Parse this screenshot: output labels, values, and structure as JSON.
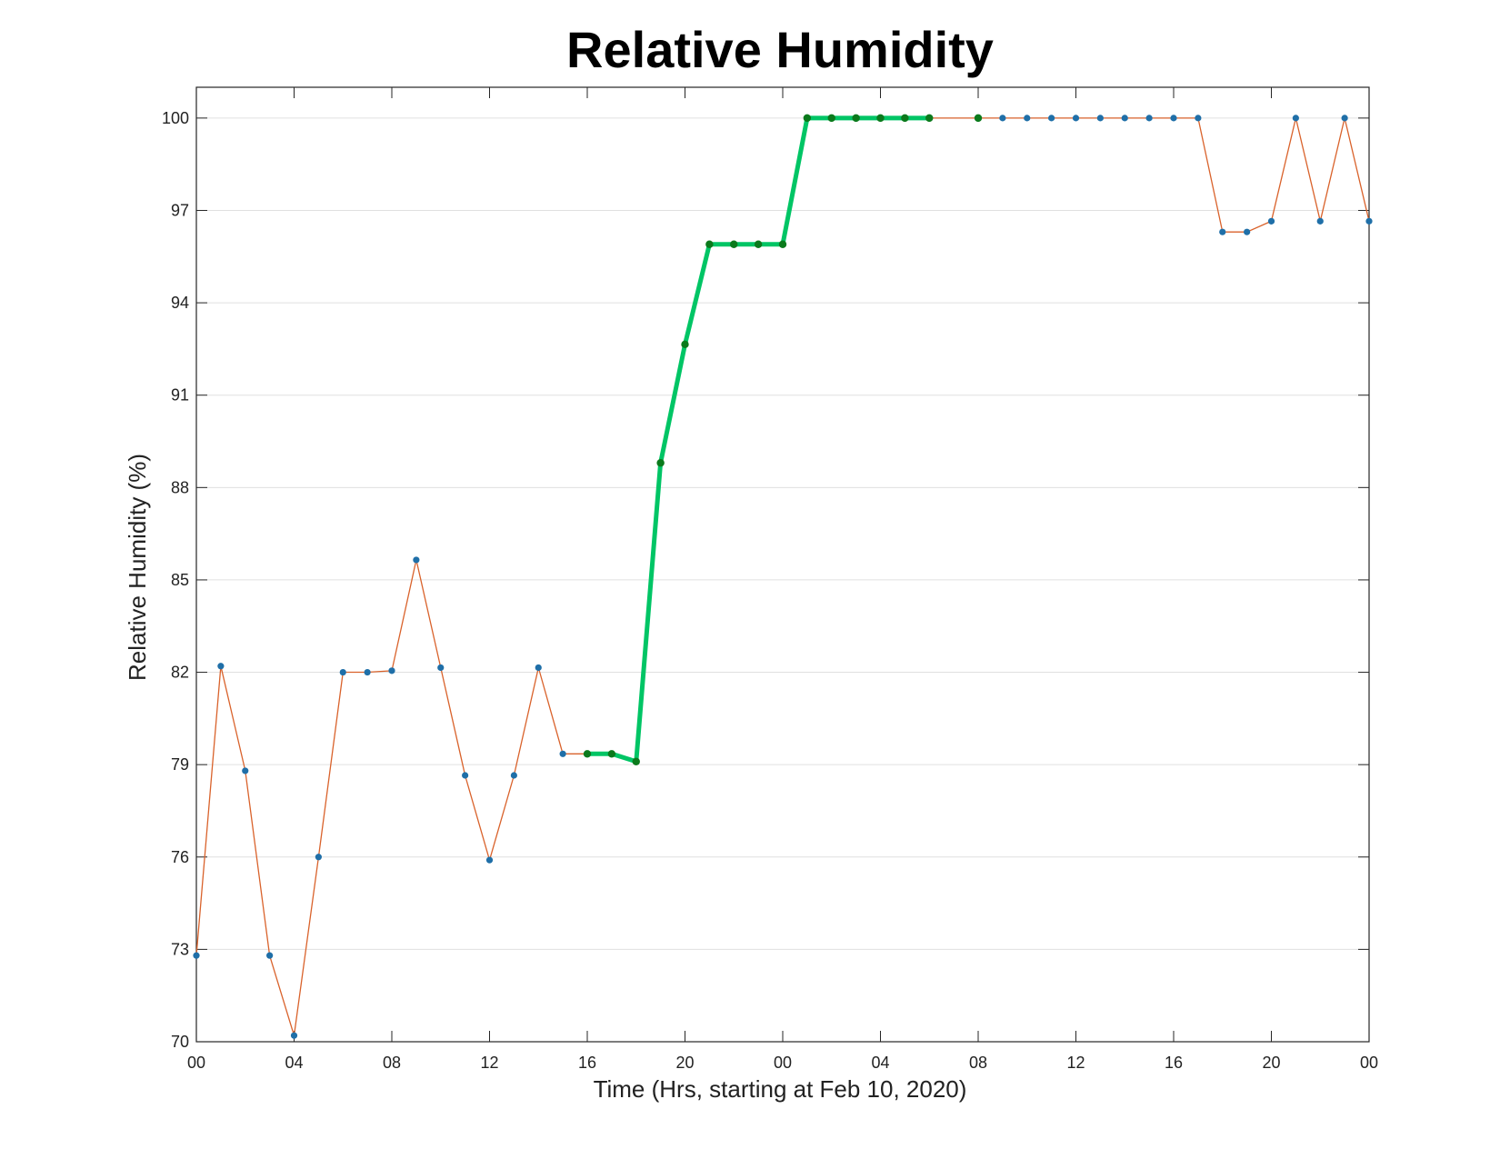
{
  "chart_data": {
    "type": "line",
    "title": "Relative Humidity",
    "xlabel": "Time (Hrs, starting at Feb 10, 2020)",
    "ylabel": "Relative Humidity (%)",
    "x_unit": "hours",
    "xlim": [
      0,
      48
    ],
    "ylim": [
      70,
      101
    ],
    "yticks": [
      70,
      73,
      76,
      79,
      82,
      85,
      88,
      91,
      94,
      97,
      100
    ],
    "xticks": [
      0,
      4,
      8,
      12,
      16,
      20,
      24,
      28,
      32,
      36,
      40,
      44,
      48
    ],
    "xtick_labels": [
      "00",
      "04",
      "08",
      "12",
      "16",
      "20",
      "00",
      "04",
      "08",
      "12",
      "16",
      "20",
      "00"
    ],
    "grid": "horizontal",
    "colors": {
      "line": "#d9622b",
      "marker": "#1f6fa8",
      "highlight_line": "#00c565",
      "highlight_marker": "#0b7a1c",
      "grid": "#e0e0e0",
      "axis": "#262626"
    },
    "series": [
      {
        "x": [
          0,
          1,
          2,
          3,
          4,
          5,
          6,
          7,
          8,
          9,
          10,
          11,
          12,
          13,
          14,
          15,
          16,
          17,
          18,
          19,
          20,
          21,
          22,
          23,
          24,
          25,
          26,
          27,
          28,
          29,
          30,
          32,
          33,
          34,
          35,
          36,
          37,
          38,
          39,
          40,
          41,
          42,
          43,
          44,
          45,
          46,
          47,
          48
        ],
        "y": [
          72.8,
          82.2,
          78.8,
          72.8,
          70.2,
          76.0,
          82.0,
          82.0,
          82.05,
          85.65,
          82.15,
          78.65,
          75.9,
          78.65,
          82.15,
          79.35,
          79.35,
          79.35,
          79.1,
          88.8,
          92.65,
          95.9,
          95.9,
          95.9,
          95.9,
          100,
          100,
          100,
          100,
          100,
          100,
          100,
          100,
          100,
          100,
          100,
          100,
          100,
          100,
          100,
          100,
          96.3,
          96.3,
          96.65,
          100,
          96.65,
          100,
          96.65
        ]
      },
      {
        "x": [
          16,
          17,
          18,
          19,
          20,
          21,
          22,
          23,
          24,
          25,
          26,
          27,
          28,
          29,
          30
        ],
        "y": [
          79.35,
          79.35,
          79.1,
          88.8,
          92.65,
          95.9,
          95.9,
          95.9,
          95.9,
          100,
          100,
          100,
          100,
          100,
          100
        ],
        "highlight": true
      },
      {
        "x": [
          32
        ],
        "y": [
          100
        ],
        "highlight": true
      }
    ]
  }
}
